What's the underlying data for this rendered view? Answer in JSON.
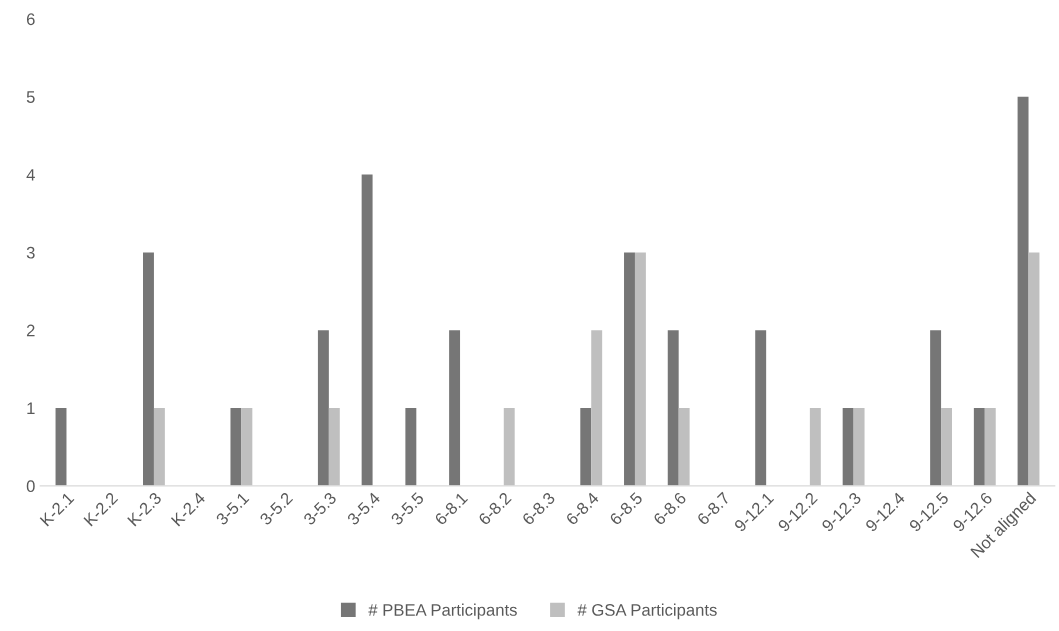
{
  "chart_data": {
    "type": "bar",
    "categories": [
      "K-2.1",
      "K-2.2",
      "K-2.3",
      "K-2.4",
      "3-5.1",
      "3-5.2",
      "3-5.3",
      "3-5.4",
      "3-5.5",
      "6-8.1",
      "6-8.2",
      "6-8.3",
      "6-8.4",
      "6-8.5",
      "6-8.6",
      "6-8.7",
      "9-12.1",
      "9-12.2",
      "9-12.3",
      "9-12.4",
      "9-12.5",
      "9-12.6",
      "Not aligned"
    ],
    "series": [
      {
        "name": "# PBEA Participants",
        "color": "#767676",
        "values": [
          1,
          0,
          3,
          0,
          1,
          0,
          2,
          4,
          1,
          2,
          0,
          0,
          1,
          3,
          2,
          0,
          2,
          0,
          1,
          0,
          2,
          1,
          5
        ]
      },
      {
        "name": "# GSA Participants",
        "color": "#bfbfbf",
        "values": [
          0,
          0,
          1,
          0,
          1,
          0,
          1,
          0,
          0,
          0,
          1,
          0,
          2,
          3,
          1,
          0,
          0,
          1,
          1,
          0,
          1,
          1,
          3
        ]
      }
    ],
    "ylim": [
      0,
      6
    ],
    "yticks": [
      0,
      1,
      2,
      3,
      4,
      5,
      6
    ],
    "grid": false,
    "legend": "bottom"
  }
}
